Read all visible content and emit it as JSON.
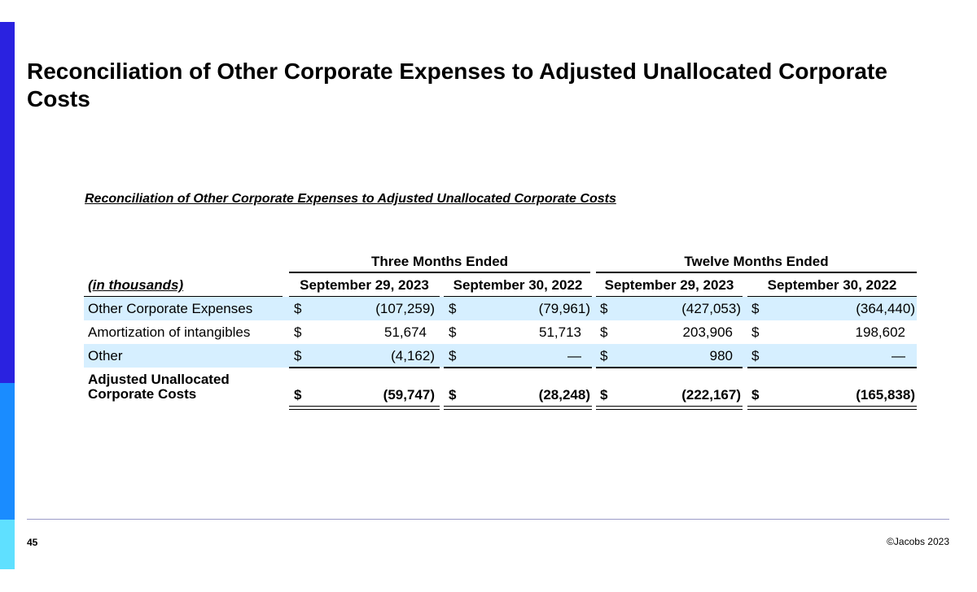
{
  "slide": {
    "title": "Reconciliation of Other Corporate Expenses to Adjusted Unallocated Corporate Costs",
    "page_number": "45",
    "copyright": "©Jacobs 2023"
  },
  "colors": {
    "sidebar_top": "#2a22e0",
    "sidebar_mid": "#1a8cff",
    "sidebar_bottom": "#5fe0ff",
    "row_highlight": "#d6efff",
    "footer_rule": "#9a9ac8"
  },
  "table": {
    "caption": "Reconciliation of Other Corporate Expenses to Adjusted Unallocated Corporate Costs",
    "group_headers": [
      "Three Months Ended",
      "Twelve Months Ended"
    ],
    "unit_label": "(in thousands)",
    "column_headers": [
      "September 29, 2023",
      "September 30, 2022",
      "September 29, 2023",
      "September 30, 2022"
    ],
    "currency_symbol": "$",
    "rows": [
      {
        "label": "Other Corporate Expenses",
        "values": [
          "(107,259)",
          "(79,961)",
          "(427,053)",
          "(364,440)"
        ]
      },
      {
        "label": "Amortization of intangibles",
        "values": [
          "51,674",
          "51,713",
          "203,906",
          "198,602"
        ]
      },
      {
        "label": "Other",
        "values": [
          "(4,162)",
          "—",
          "980",
          "—"
        ]
      }
    ],
    "total": {
      "label_line1": "Adjusted Unallocated",
      "label_line2": "Corporate Costs",
      "values": [
        "(59,747)",
        "(28,248)",
        "(222,167)",
        "(165,838)"
      ]
    }
  }
}
